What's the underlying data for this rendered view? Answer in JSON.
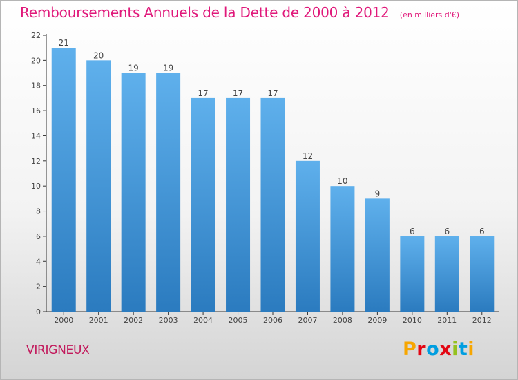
{
  "header": {
    "title": "Remboursements Annuels de la Dette de 2000 à 2012",
    "unit": "(en milliers d'€)"
  },
  "footer": {
    "commune": "VIRIGNEUX",
    "logo": "Proxiti",
    "logo_colors": [
      "#f7a600",
      "#e30613",
      "#009ee0",
      "#e30613",
      "#95c11f",
      "#009ee0",
      "#f7a600"
    ]
  },
  "chart_data": {
    "type": "bar",
    "title": "Remboursements Annuels de la Dette de 2000 à 2012",
    "xlabel": "",
    "ylabel": "",
    "categories": [
      "2000",
      "2001",
      "2002",
      "2003",
      "2004",
      "2005",
      "2006",
      "2007",
      "2008",
      "2009",
      "2010",
      "2011",
      "2012"
    ],
    "values": [
      21,
      20,
      19,
      19,
      17,
      17,
      17,
      12,
      10,
      9,
      6,
      6,
      6
    ],
    "ylim": [
      0,
      22
    ],
    "yticks": [
      0,
      2,
      4,
      6,
      8,
      10,
      12,
      14,
      16,
      18,
      20,
      22
    ],
    "grid": false,
    "colors": {
      "bar_top": "#5fb0ec",
      "bar_bottom": "#2b7bbf",
      "axis": "#333333"
    }
  }
}
